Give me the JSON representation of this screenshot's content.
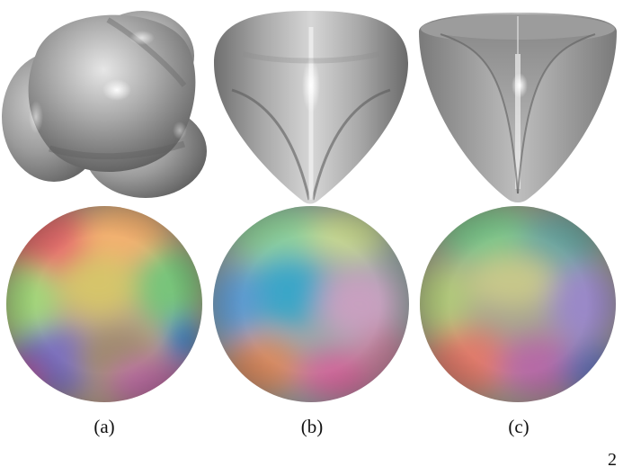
{
  "figure": {
    "panels": [
      {
        "id": "a",
        "caption": "(a)"
      },
      {
        "id": "b",
        "caption": "(b)"
      },
      {
        "id": "c",
        "caption": "(c)"
      }
    ],
    "corner_mark": "2"
  },
  "colors": {
    "surface_gray": "#9a9a9a",
    "surface_light": "#d8d8d8",
    "surface_dark": "#5e5e5e"
  }
}
